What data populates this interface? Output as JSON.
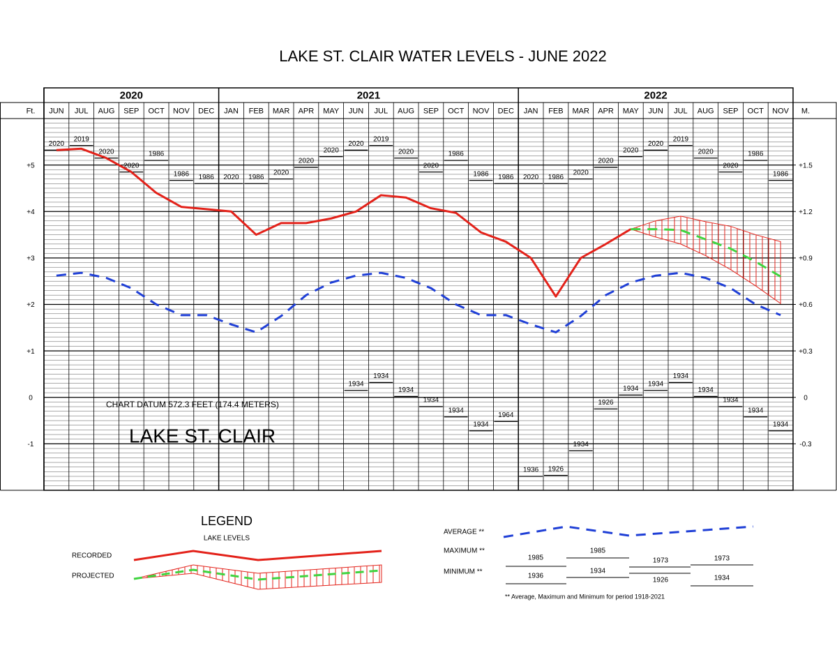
{
  "chart_data": {
    "type": "line",
    "title": "LAKE ST. CLAIR WATER LEVELS - JUNE 2022",
    "years": [
      "2020",
      "2021",
      "2022"
    ],
    "categories": [
      "JUN",
      "JUL",
      "AUG",
      "SEP",
      "OCT",
      "NOV",
      "DEC",
      "JAN",
      "FEB",
      "MAR",
      "APR",
      "MAY",
      "JUN",
      "JUL",
      "AUG",
      "SEP",
      "OCT",
      "NOV",
      "DEC",
      "JAN",
      "FEB",
      "MAR",
      "APR",
      "MAY",
      "JUN",
      "JUL",
      "AUG",
      "SEP",
      "OCT",
      "NOV"
    ],
    "y_label": "Ft.",
    "y2_label": "M.",
    "ylim": [
      -2,
      6
    ],
    "yticks": [
      -1,
      0,
      {
        "value": 1,
        "label": "+1"
      },
      {
        "value": 2,
        "label": "+2"
      },
      {
        "value": 3,
        "label": "+3"
      },
      {
        "value": 4,
        "label": "+4"
      },
      {
        "value": 5,
        "label": "+5"
      }
    ],
    "y2lim": [
      -0.6,
      1.8
    ],
    "y2ticks": [
      -0.3,
      0,
      {
        "value": 0.3,
        "label": "+0.3"
      },
      {
        "value": 0.6,
        "label": "+0.6"
      },
      {
        "value": 0.9,
        "label": "+0.9"
      },
      {
        "value": 1.2,
        "label": "+1.2"
      },
      {
        "value": 1.5,
        "label": "+1.5"
      }
    ],
    "minor_grid": 0.1,
    "series": [
      {
        "name": "RECORDED",
        "color": "#e32119",
        "dash": false,
        "values": [
          5.32,
          5.35,
          5.15,
          4.85,
          4.4,
          4.1,
          4.05,
          4.0,
          3.5,
          3.75,
          3.75,
          3.85,
          4.0,
          4.35,
          4.3,
          4.07,
          3.97,
          3.55,
          3.35,
          3.0,
          2.17,
          3.0,
          3.3,
          3.62,
          null,
          null,
          null,
          null,
          null,
          null
        ]
      },
      {
        "name": "AVERAGE **",
        "color": "#1f3fd6",
        "dash": true,
        "values": [
          2.62,
          2.68,
          2.57,
          2.35,
          2.0,
          1.77,
          1.77,
          1.57,
          1.4,
          1.75,
          2.2,
          2.47,
          2.62,
          2.68,
          2.57,
          2.35,
          2.0,
          1.77,
          1.77,
          1.57,
          1.4,
          1.75,
          2.2,
          2.47,
          2.62,
          2.68,
          2.57,
          2.35,
          2.0,
          1.77
        ]
      },
      {
        "name": "PROJECTED",
        "color": "#3fd43f",
        "dash": true,
        "values": [
          null,
          null,
          null,
          null,
          null,
          null,
          null,
          null,
          null,
          null,
          null,
          null,
          null,
          null,
          null,
          null,
          null,
          null,
          null,
          null,
          null,
          null,
          null,
          3.62,
          3.62,
          3.6,
          3.4,
          3.2,
          2.92,
          2.6
        ]
      }
    ],
    "projected_range": {
      "color": "#e32119",
      "upper": [
        null,
        null,
        null,
        null,
        null,
        null,
        null,
        null,
        null,
        null,
        null,
        null,
        null,
        null,
        null,
        null,
        null,
        null,
        null,
        null,
        null,
        null,
        null,
        3.62,
        3.8,
        3.9,
        3.78,
        3.68,
        3.5,
        3.35
      ],
      "lower": [
        null,
        null,
        null,
        null,
        null,
        null,
        null,
        null,
        null,
        null,
        null,
        null,
        null,
        null,
        null,
        null,
        null,
        null,
        null,
        null,
        null,
        null,
        null,
        3.62,
        3.45,
        3.3,
        3.05,
        2.75,
        2.4,
        2.02
      ]
    },
    "maximum": {
      "name": "MAXIMUM **",
      "values": [
        5.32,
        5.42,
        5.15,
        4.85,
        5.1,
        4.67,
        4.6,
        4.6,
        4.6,
        4.7,
        4.95,
        5.18,
        5.32,
        5.42,
        5.15,
        4.85,
        5.1,
        4.67,
        4.6,
        4.6,
        4.6,
        4.7,
        4.95,
        5.18,
        5.32,
        5.42,
        5.15,
        4.85,
        5.1,
        4.67
      ],
      "years": [
        "2020",
        "2019",
        "2020",
        "2020",
        "1986",
        "1986",
        "1986",
        "2020",
        "1986",
        "2020",
        "2020",
        "2020",
        "2020",
        "2019",
        "2020",
        "2020",
        "1986",
        "1986",
        "1986",
        "2020",
        "1986",
        "2020",
        "2020",
        "2020",
        "2020",
        "2019",
        "2020",
        "2020",
        "1986",
        "1986"
      ]
    },
    "minimum": {
      "name": "MINIMUM **",
      "values": [
        null,
        null,
        null,
        null,
        null,
        null,
        null,
        null,
        null,
        null,
        null,
        null,
        0.15,
        0.32,
        0.02,
        -0.2,
        -0.42,
        -0.72,
        -0.52,
        -1.7,
        -1.68,
        -1.15,
        -0.25,
        0.05,
        0.15,
        0.32,
        0.02,
        -0.2,
        -0.42,
        -0.72
      ],
      "years": [
        null,
        null,
        null,
        null,
        null,
        null,
        null,
        null,
        null,
        null,
        null,
        null,
        "1934",
        "1934",
        "1934",
        "1934",
        "1934",
        "1934",
        "1964",
        "1936",
        "1926",
        "1934",
        "1926",
        "1934",
        "1934",
        "1934",
        "1934",
        "1934",
        "1934",
        "1934"
      ]
    },
    "annotations": [
      "CHART DATUM  572.3 FEET (174.4 METERS)",
      "LAKE ST. CLAIR"
    ],
    "legend": {
      "title": "LEGEND",
      "subtitle": "LAKE LEVELS",
      "max_years": [
        "1985",
        "1985",
        "1973",
        "1973"
      ],
      "min_years": [
        "1936",
        "1934",
        "1926",
        "1934"
      ],
      "note": "** Average, Maximum and Minimum for period 1918-2021"
    }
  }
}
